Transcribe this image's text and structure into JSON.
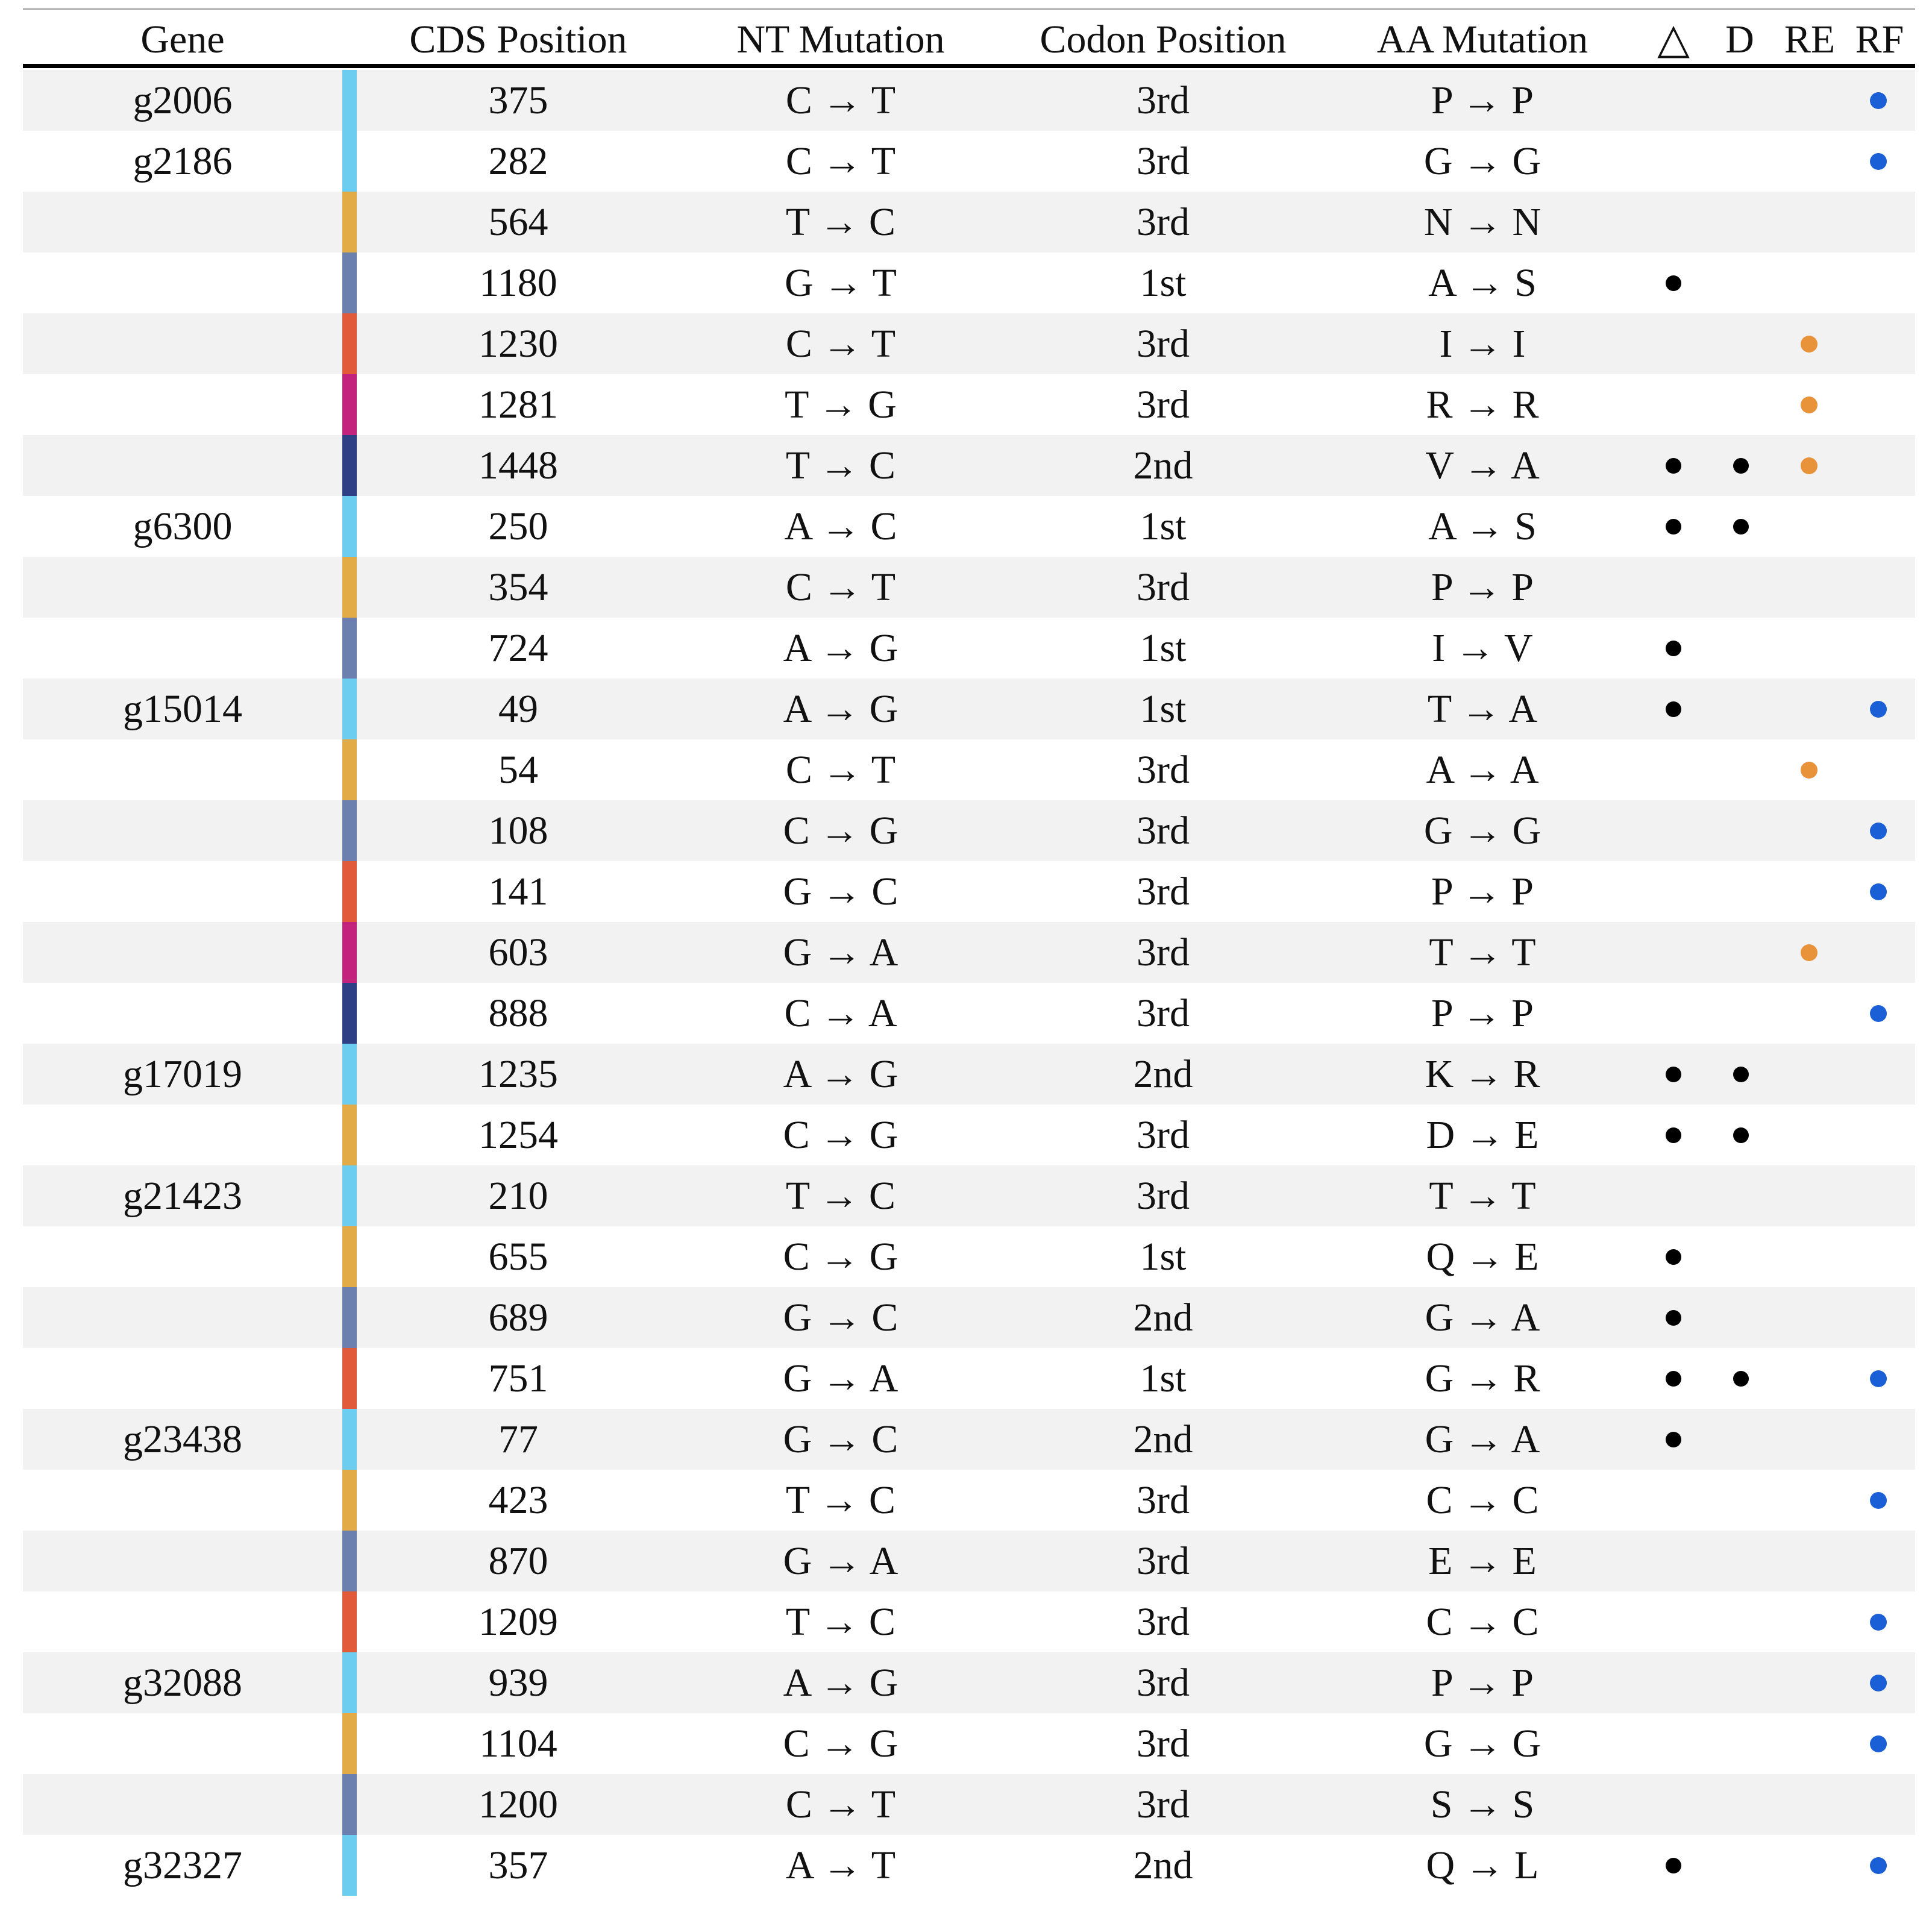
{
  "headers": {
    "gene": "Gene",
    "cds": "CDS Position",
    "nt": "NT Mutation",
    "codon": "Codon Position",
    "aa": "AA Mutation",
    "delta": "△",
    "d": "D",
    "re": "RE",
    "rf": "RF"
  },
  "colors": {
    "stripes": [
      "#6dcdf0",
      "#e3ab48",
      "#6c80b0",
      "#e15a3a",
      "#c3237c",
      "#2f3f86"
    ],
    "re_dot": "#e8923a",
    "rf_dot": "#1a5fd6",
    "flag_dot": "#000000"
  },
  "rows": [
    {
      "gene": "g2006",
      "cds": "375",
      "nt": "C → T",
      "codon": "3rd",
      "aa": "P → P",
      "stripe": 0,
      "delta": false,
      "d": false,
      "re": false,
      "rf": true
    },
    {
      "gene": "g2186",
      "cds": "282",
      "nt": "C → T",
      "codon": "3rd",
      "aa": "G → G",
      "stripe": 0,
      "delta": false,
      "d": false,
      "re": false,
      "rf": true
    },
    {
      "gene": "",
      "cds": "564",
      "nt": "T → C",
      "codon": "3rd",
      "aa": "N → N",
      "stripe": 1,
      "delta": false,
      "d": false,
      "re": false,
      "rf": false
    },
    {
      "gene": "",
      "cds": "1180",
      "nt": "G → T",
      "codon": "1st",
      "aa": "A → S",
      "stripe": 2,
      "delta": true,
      "d": false,
      "re": false,
      "rf": false
    },
    {
      "gene": "",
      "cds": "1230",
      "nt": "C → T",
      "codon": "3rd",
      "aa": "I → I",
      "stripe": 3,
      "delta": false,
      "d": false,
      "re": true,
      "rf": false
    },
    {
      "gene": "",
      "cds": "1281",
      "nt": "T → G",
      "codon": "3rd",
      "aa": "R → R",
      "stripe": 4,
      "delta": false,
      "d": false,
      "re": true,
      "rf": false
    },
    {
      "gene": "",
      "cds": "1448",
      "nt": "T → C",
      "codon": "2nd",
      "aa": "V → A",
      "stripe": 5,
      "delta": true,
      "d": true,
      "re": true,
      "rf": false
    },
    {
      "gene": "g6300",
      "cds": "250",
      "nt": "A → C",
      "codon": "1st",
      "aa": "A → S",
      "stripe": 0,
      "delta": true,
      "d": true,
      "re": false,
      "rf": false
    },
    {
      "gene": "",
      "cds": "354",
      "nt": "C → T",
      "codon": "3rd",
      "aa": "P → P",
      "stripe": 1,
      "delta": false,
      "d": false,
      "re": false,
      "rf": false
    },
    {
      "gene": "",
      "cds": "724",
      "nt": "A → G",
      "codon": "1st",
      "aa": "I → V",
      "stripe": 2,
      "delta": true,
      "d": false,
      "re": false,
      "rf": false
    },
    {
      "gene": "g15014",
      "cds": "49",
      "nt": "A → G",
      "codon": "1st",
      "aa": "T → A",
      "stripe": 0,
      "delta": true,
      "d": false,
      "re": false,
      "rf": true
    },
    {
      "gene": "",
      "cds": "54",
      "nt": "C → T",
      "codon": "3rd",
      "aa": "A → A",
      "stripe": 1,
      "delta": false,
      "d": false,
      "re": true,
      "rf": false
    },
    {
      "gene": "",
      "cds": "108",
      "nt": "C → G",
      "codon": "3rd",
      "aa": "G → G",
      "stripe": 2,
      "delta": false,
      "d": false,
      "re": false,
      "rf": true
    },
    {
      "gene": "",
      "cds": "141",
      "nt": "G → C",
      "codon": "3rd",
      "aa": "P → P",
      "stripe": 3,
      "delta": false,
      "d": false,
      "re": false,
      "rf": true
    },
    {
      "gene": "",
      "cds": "603",
      "nt": "G → A",
      "codon": "3rd",
      "aa": "T → T",
      "stripe": 4,
      "delta": false,
      "d": false,
      "re": true,
      "rf": false
    },
    {
      "gene": "",
      "cds": "888",
      "nt": "C → A",
      "codon": "3rd",
      "aa": "P → P",
      "stripe": 5,
      "delta": false,
      "d": false,
      "re": false,
      "rf": true
    },
    {
      "gene": "g17019",
      "cds": "1235",
      "nt": "A → G",
      "codon": "2nd",
      "aa": "K → R",
      "stripe": 0,
      "delta": true,
      "d": true,
      "re": false,
      "rf": false
    },
    {
      "gene": "",
      "cds": "1254",
      "nt": "C → G",
      "codon": "3rd",
      "aa": "D → E",
      "stripe": 1,
      "delta": true,
      "d": true,
      "re": false,
      "rf": false
    },
    {
      "gene": "g21423",
      "cds": "210",
      "nt": "T → C",
      "codon": "3rd",
      "aa": "T → T",
      "stripe": 0,
      "delta": false,
      "d": false,
      "re": false,
      "rf": false
    },
    {
      "gene": "",
      "cds": "655",
      "nt": "C → G",
      "codon": "1st",
      "aa": "Q → E",
      "stripe": 1,
      "delta": true,
      "d": false,
      "re": false,
      "rf": false
    },
    {
      "gene": "",
      "cds": "689",
      "nt": "G → C",
      "codon": "2nd",
      "aa": "G → A",
      "stripe": 2,
      "delta": true,
      "d": false,
      "re": false,
      "rf": false
    },
    {
      "gene": "",
      "cds": "751",
      "nt": "G → A",
      "codon": "1st",
      "aa": "G → R",
      "stripe": 3,
      "delta": true,
      "d": true,
      "re": false,
      "rf": true
    },
    {
      "gene": "g23438",
      "cds": "77",
      "nt": "G → C",
      "codon": "2nd",
      "aa": "G → A",
      "stripe": 0,
      "delta": true,
      "d": false,
      "re": false,
      "rf": false
    },
    {
      "gene": "",
      "cds": "423",
      "nt": "T → C",
      "codon": "3rd",
      "aa": "C → C",
      "stripe": 1,
      "delta": false,
      "d": false,
      "re": false,
      "rf": true
    },
    {
      "gene": "",
      "cds": "870",
      "nt": "G → A",
      "codon": "3rd",
      "aa": "E → E",
      "stripe": 2,
      "delta": false,
      "d": false,
      "re": false,
      "rf": false
    },
    {
      "gene": "",
      "cds": "1209",
      "nt": "T → C",
      "codon": "3rd",
      "aa": "C → C",
      "stripe": 3,
      "delta": false,
      "d": false,
      "re": false,
      "rf": true
    },
    {
      "gene": "g32088",
      "cds": "939",
      "nt": "A → G",
      "codon": "3rd",
      "aa": "P → P",
      "stripe": 0,
      "delta": false,
      "d": false,
      "re": false,
      "rf": true
    },
    {
      "gene": "",
      "cds": "1104",
      "nt": "C → G",
      "codon": "3rd",
      "aa": "G → G",
      "stripe": 1,
      "delta": false,
      "d": false,
      "re": false,
      "rf": true
    },
    {
      "gene": "",
      "cds": "1200",
      "nt": "C → T",
      "codon": "3rd",
      "aa": "S → S",
      "stripe": 2,
      "delta": false,
      "d": false,
      "re": false,
      "rf": false
    },
    {
      "gene": "g32327",
      "cds": "357",
      "nt": "A → T",
      "codon": "2nd",
      "aa": "Q → L",
      "stripe": 0,
      "delta": true,
      "d": false,
      "re": false,
      "rf": true
    }
  ]
}
